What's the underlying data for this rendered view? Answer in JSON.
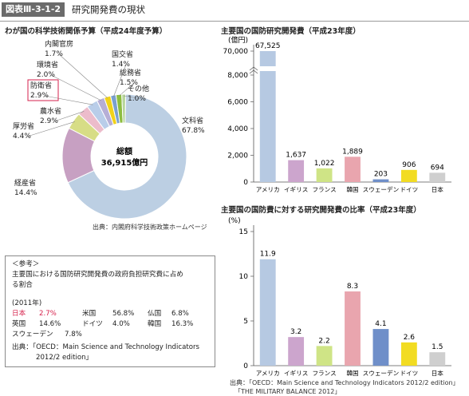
{
  "header": {
    "badge": "図表Ⅲ-3-1-2",
    "title": "研究開発費の現状"
  },
  "colors": {
    "pie": [
      "#bccfe3",
      "#c7a0c2",
      "#d7dd86",
      "#ecbccb",
      "#b9cde9",
      "#b6aed6",
      "#f1d21a",
      "#7aa0cf",
      "#8dbd3f",
      "#b7d59a"
    ],
    "highlight": "#d6224c",
    "bars": [
      "#b6c9e2",
      "#cca5cd",
      "#cfe486",
      "#e9a5ae",
      "#6f8fc9",
      "#f2dc22",
      "#cfcfcf"
    ]
  },
  "chart_data": [
    {
      "type": "pie",
      "title": "わが国の科学技術関係予算（平成24年度予算）",
      "center_label": [
        "総額",
        "36,915億円"
      ],
      "slices": [
        {
          "label": "文科省",
          "value_label": "67.8%",
          "value": 67.8
        },
        {
          "label": "経産省",
          "value_label": "14.4%",
          "value": 14.4
        },
        {
          "label": "厚労省",
          "value_label": "4.4%",
          "value": 4.4
        },
        {
          "label": "農水省",
          "value_label": "2.9%",
          "value": 2.9
        },
        {
          "label": "防衛省",
          "value_label": "2.9%",
          "value": 2.9,
          "highlight": true
        },
        {
          "label": "環境省",
          "value_label": "2.0%",
          "value": 2.0
        },
        {
          "label": "内閣官房",
          "value_label": "1.7%",
          "value": 1.7
        },
        {
          "label": "国交省",
          "value_label": "1.4%",
          "value": 1.4
        },
        {
          "label": "総務省",
          "value_label": "1.5%",
          "value": 1.5
        },
        {
          "label": "その他",
          "value_label": "1.0%",
          "value": 1.0
        }
      ],
      "source": "出典：内閣府科学技術政策ホームページ"
    },
    {
      "type": "bar",
      "title": "主要国の国防研究開発費（平成23年度）",
      "ylabel": "(億円)",
      "categories": [
        "アメリカ",
        "イギリス",
        "フランス",
        "韓国",
        "スウェーデン",
        "ドイツ",
        "日本"
      ],
      "values": [
        67525,
        1637,
        1022,
        1889,
        203,
        906,
        694
      ],
      "value_labels": [
        "67,525",
        "1,637",
        "1,022",
        "1,889",
        "203",
        "906",
        "694"
      ],
      "yticks": [
        "0",
        "2,000",
        "4,000",
        "6,000",
        "8,000",
        "70,000"
      ],
      "ylim": [
        0,
        8000
      ],
      "axis_break": true
    },
    {
      "type": "bar",
      "title": "主要国の国防費に対する研究開発費の比率（平成23年度）",
      "ylabel": "(%)",
      "categories": [
        "アメリカ",
        "イギリス",
        "フランス",
        "韓国",
        "スウェーデン",
        "ドイツ",
        "日本"
      ],
      "values": [
        11.9,
        3.2,
        2.2,
        8.3,
        4.1,
        2.6,
        1.5
      ],
      "value_labels": [
        "11.9",
        "3.2",
        "2.2",
        "8.3",
        "4.1",
        "2.6",
        "1.5"
      ],
      "yticks": [
        "0",
        "5",
        "10",
        "15"
      ],
      "ylim": [
        0,
        15
      ],
      "source": [
        "出典：「OECD：Main Science and Technology Indicators 2012/2 edition」",
        "「THE MILITARY BALANCE 2012」"
      ]
    }
  ],
  "reference": {
    "heading": "＜参考＞",
    "desc": [
      "主要国における国防研究開発費の政府負担研究費に占め",
      "る割合"
    ],
    "year": "(2011年)",
    "rows": [
      [
        {
          "name": "日本",
          "value": "2.7%",
          "highlight": true
        },
        {
          "name": "米国",
          "value": "56.8%"
        },
        {
          "name": "仏国",
          "value": "6.8%"
        }
      ],
      [
        {
          "name": "英国",
          "value": "14.6%"
        },
        {
          "name": "ドイツ",
          "value": "4.0%"
        },
        {
          "name": "韓国",
          "value": "16.3%"
        }
      ],
      [
        {
          "name": "スウェーデン",
          "value": "7.8%"
        }
      ]
    ],
    "source": [
      "出典：「OECD：Main Science and Technology Indicators",
      "2012/2 edition」"
    ]
  }
}
